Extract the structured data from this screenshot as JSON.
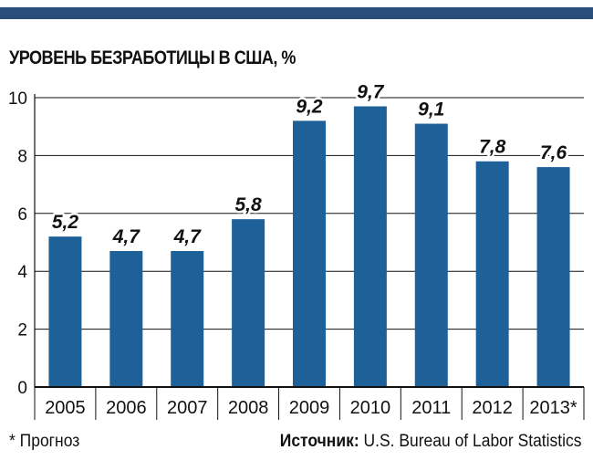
{
  "colors": {
    "bar": "#1e6199",
    "top_rule": "#2a4e7c",
    "axis": "#111111"
  },
  "footnote": "* Прогноз",
  "source": {
    "label": "Источник:",
    "text": " U.S. Bureau of Labor Statistics"
  },
  "chart_data": {
    "type": "bar",
    "title": "УРОВЕНЬ БЕЗРАБОТИЦЫ В США, %",
    "xlabel": "",
    "ylabel": "",
    "categories": [
      "2005",
      "2006",
      "2007",
      "2008",
      "2009",
      "2010",
      "2011",
      "2012",
      "2013*"
    ],
    "values": [
      5.2,
      4.7,
      4.7,
      5.8,
      9.2,
      9.7,
      9.1,
      7.8,
      7.6
    ],
    "data_labels": [
      "5,2",
      "4,7",
      "4,7",
      "5,8",
      "9,2",
      "9,7",
      "9,1",
      "7,8",
      "7,6"
    ],
    "ylim": [
      0,
      10
    ],
    "yticks": [
      0,
      2,
      4,
      6,
      8,
      10
    ],
    "grid": true
  }
}
